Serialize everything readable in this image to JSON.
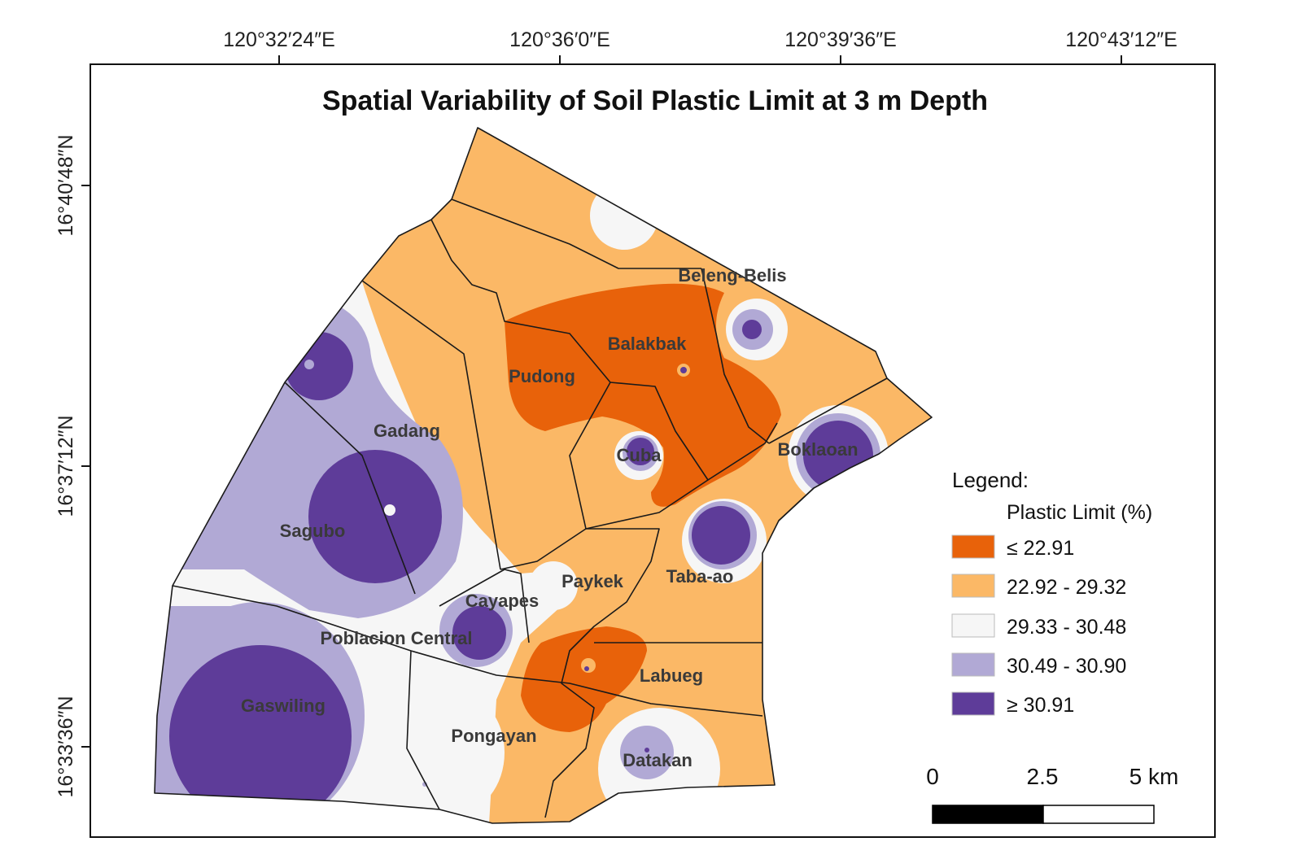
{
  "title": "Spatial Variability of Soil Plastic Limit at 3 m Depth",
  "longitude_labels": [
    "120°32′24″E",
    "120°36′0″E",
    "120°39′36″E",
    "120°43′12″E"
  ],
  "latitude_labels": [
    "16°40′48″N",
    "16°37′12″N",
    "16°33′36″N"
  ],
  "barangays": [
    "Beleng-Belis",
    "Balakbak",
    "Pudong",
    "Gadang",
    "Cuba",
    "Boklaoan",
    "Sagubo",
    "Cayapes",
    "Paykek",
    "Taba-ao",
    "Poblacion Central",
    "Labueg",
    "Gaswiling",
    "Pongayan",
    "Datakan"
  ],
  "legend": {
    "title": "Legend:",
    "subtitle": "Plastic Limit (%)",
    "classes": [
      {
        "label": "≤ 22.91",
        "color": "#e8620a"
      },
      {
        "label": "22.92 - 29.32",
        "color": "#fbb866"
      },
      {
        "label": "29.33 - 30.48",
        "color": "#f6f6f6"
      },
      {
        "label": "30.49 - 30.90",
        "color": "#b1a9d5"
      },
      {
        "label": "≥ 30.91",
        "color": "#5e3c99"
      }
    ]
  },
  "scale_bar": {
    "labels": [
      "0",
      "2.5",
      "5 km"
    ]
  }
}
